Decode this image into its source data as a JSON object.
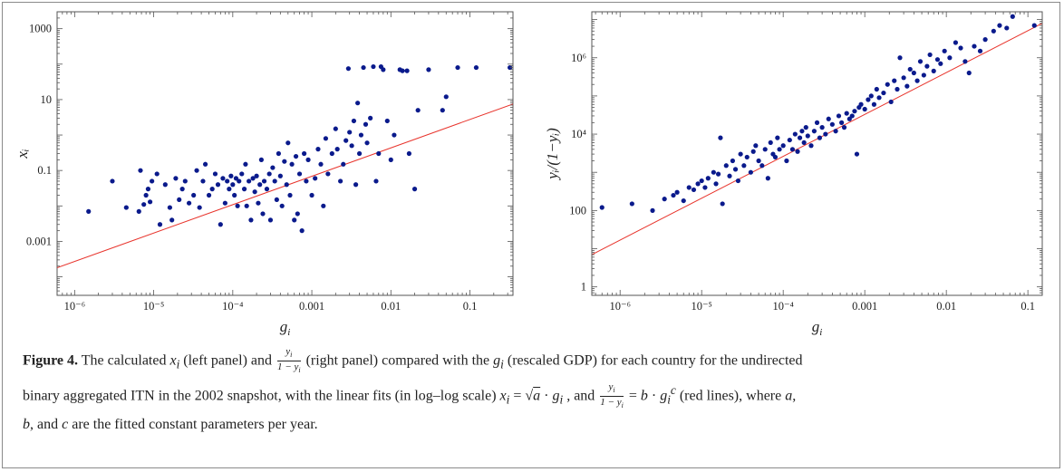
{
  "chart_data": [
    {
      "type": "scatter",
      "panel": "left",
      "xlabel": "g_i",
      "ylabel": "x_i",
      "xscale": "log",
      "yscale": "log",
      "xlim": [
        6e-07,
        0.35
      ],
      "ylim": [
        3e-05,
        3000
      ],
      "xticks": [
        1e-06,
        1e-05,
        0.0001,
        0.001,
        0.01,
        0.1
      ],
      "xtick_labels": [
        "10⁻⁶",
        "10⁻⁵",
        "10⁻⁴",
        "0.001",
        "0.01",
        "0.1"
      ],
      "yticks": [
        0.001,
        0.1,
        10,
        1000
      ],
      "ytick_labels": [
        "0.001",
        "0.1",
        "10",
        "1000"
      ],
      "grid": false,
      "point_color": "#0a1a8c",
      "fit_color": "#e8342c",
      "fit_line": {
        "x": [
          6e-07,
          0.35
        ],
        "y": [
          0.00018,
          7.5
        ]
      },
      "series": [
        {
          "points": [
            [
              1.5e-06,
              0.007
            ],
            [
              3e-06,
              0.05
            ],
            [
              4.5e-06,
              0.009
            ],
            [
              6.5e-06,
              0.007
            ],
            [
              6.8e-06,
              0.1
            ],
            [
              7.5e-06,
              0.011
            ],
            [
              8e-06,
              0.02
            ],
            [
              8.5e-06,
              0.03
            ],
            [
              9e-06,
              0.013
            ],
            [
              9.5e-06,
              0.05
            ],
            [
              1.1e-05,
              0.08
            ],
            [
              1.2e-05,
              0.003
            ],
            [
              1.4e-05,
              0.04
            ],
            [
              1.6e-05,
              0.009
            ],
            [
              1.7e-05,
              0.004
            ],
            [
              1.9e-05,
              0.06
            ],
            [
              2.1e-05,
              0.015
            ],
            [
              2.3e-05,
              0.03
            ],
            [
              2.5e-05,
              0.05
            ],
            [
              2.8e-05,
              0.012
            ],
            [
              3.2e-05,
              0.02
            ],
            [
              3.5e-05,
              0.1
            ],
            [
              3.8e-05,
              0.009
            ],
            [
              4.2e-05,
              0.05
            ],
            [
              4.5e-05,
              0.15
            ],
            [
              5e-05,
              0.02
            ],
            [
              5.5e-05,
              0.03
            ],
            [
              6e-05,
              0.08
            ],
            [
              6.5e-05,
              0.04
            ],
            [
              7e-05,
              0.003
            ],
            [
              7.5e-05,
              0.06
            ],
            [
              8e-05,
              0.012
            ],
            [
              8.5e-05,
              0.05
            ],
            [
              9e-05,
              0.03
            ],
            [
              9.5e-05,
              0.07
            ],
            [
              0.0001,
              0.04
            ],
            [
              0.000105,
              0.02
            ],
            [
              0.00011,
              0.06
            ],
            [
              0.000115,
              0.01
            ],
            [
              0.00012,
              0.05
            ],
            [
              0.00013,
              0.08
            ],
            [
              0.00014,
              0.03
            ],
            [
              0.000145,
              0.15
            ],
            [
              0.00015,
              0.01
            ],
            [
              0.00016,
              0.05
            ],
            [
              0.00017,
              0.004
            ],
            [
              0.00018,
              0.06
            ],
            [
              0.00019,
              0.025
            ],
            [
              0.0002,
              0.07
            ],
            [
              0.00021,
              0.012
            ],
            [
              0.00022,
              0.04
            ],
            [
              0.00023,
              0.2
            ],
            [
              0.00024,
              0.006
            ],
            [
              0.00025,
              0.05
            ],
            [
              0.00027,
              0.03
            ],
            [
              0.00029,
              0.08
            ],
            [
              0.0003,
              0.004
            ],
            [
              0.00032,
              0.12
            ],
            [
              0.00034,
              0.05
            ],
            [
              0.00036,
              0.015
            ],
            [
              0.00038,
              0.3
            ],
            [
              0.0004,
              0.07
            ],
            [
              0.00042,
              0.01
            ],
            [
              0.00045,
              0.18
            ],
            [
              0.00048,
              0.04
            ],
            [
              0.0005,
              0.6
            ],
            [
              0.00053,
              0.02
            ],
            [
              0.00056,
              0.15
            ],
            [
              0.0006,
              0.004
            ],
            [
              0.00063,
              0.25
            ],
            [
              0.00066,
              0.006
            ],
            [
              0.0007,
              0.08
            ],
            [
              0.00075,
              0.002
            ],
            [
              0.0008,
              0.3
            ],
            [
              0.00085,
              0.05
            ],
            [
              0.0009,
              0.2
            ],
            [
              0.001,
              0.02
            ],
            [
              0.0011,
              0.06
            ],
            [
              0.0012,
              0.4
            ],
            [
              0.0013,
              0.15
            ],
            [
              0.0014,
              0.01
            ],
            [
              0.0015,
              0.8
            ],
            [
              0.0016,
              0.08
            ],
            [
              0.0018,
              0.3
            ],
            [
              0.002,
              1.5
            ],
            [
              0.0021,
              0.4
            ],
            [
              0.0023,
              0.05
            ],
            [
              0.0025,
              0.15
            ],
            [
              0.0027,
              0.7
            ],
            [
              0.0029,
              75
            ],
            [
              0.003,
              1.2
            ],
            [
              0.0032,
              0.5
            ],
            [
              0.0034,
              2.5
            ],
            [
              0.0036,
              0.04
            ],
            [
              0.0038,
              8
            ],
            [
              0.004,
              0.3
            ],
            [
              0.0042,
              1
            ],
            [
              0.0045,
              80
            ],
            [
              0.0048,
              2
            ],
            [
              0.005,
              0.6
            ],
            [
              0.0055,
              3
            ],
            [
              0.006,
              85
            ],
            [
              0.0065,
              0.05
            ],
            [
              0.007,
              0.3
            ],
            [
              0.0075,
              85
            ],
            [
              0.008,
              70
            ],
            [
              0.009,
              2.5
            ],
            [
              0.01,
              0.2
            ],
            [
              0.011,
              1
            ],
            [
              0.013,
              70
            ],
            [
              0.014,
              65
            ],
            [
              0.016,
              65
            ],
            [
              0.017,
              0.3
            ],
            [
              0.02,
              0.03
            ],
            [
              0.022,
              5
            ],
            [
              0.03,
              70
            ],
            [
              0.045,
              5
            ],
            [
              0.05,
              12
            ],
            [
              0.07,
              80
            ],
            [
              0.12,
              80
            ],
            [
              0.32,
              80
            ]
          ]
        }
      ]
    },
    {
      "type": "scatter",
      "panel": "right",
      "xlabel": "g_i",
      "ylabel": "y_i/(1−y_i)",
      "xscale": "log",
      "yscale": "log",
      "xlim": [
        4.5e-07,
        0.15
      ],
      "ylim": [
        0.6,
        16000000.0
      ],
      "xticks": [
        1e-06,
        1e-05,
        0.0001,
        0.001,
        0.01,
        0.1
      ],
      "xtick_labels": [
        "10⁻⁶",
        "10⁻⁵",
        "10⁻⁴",
        "0.001",
        "0.01",
        "0.1"
      ],
      "yticks": [
        1,
        100,
        10000,
        1000000
      ],
      "ytick_labels": [
        "1",
        "100",
        "10⁴",
        "10⁶"
      ],
      "grid": false,
      "point_color": "#0a1a8c",
      "fit_color": "#e8342c",
      "fit_line": {
        "x": [
          4.5e-07,
          0.15
        ],
        "y": [
          7,
          8000000.0
        ]
      },
      "series": [
        {
          "points": [
            [
              6e-07,
              120
            ],
            [
              1.4e-06,
              150
            ],
            [
              2.5e-06,
              100
            ],
            [
              3.5e-06,
              200
            ],
            [
              4.5e-06,
              250
            ],
            [
              5e-06,
              300
            ],
            [
              6e-06,
              180
            ],
            [
              7e-06,
              400
            ],
            [
              8e-06,
              350
            ],
            [
              9e-06,
              500
            ],
            [
              1e-05,
              600
            ],
            [
              1.1e-05,
              400
            ],
            [
              1.2e-05,
              700
            ],
            [
              1.4e-05,
              1000
            ],
            [
              1.5e-05,
              500
            ],
            [
              1.6e-05,
              900
            ],
            [
              1.7e-05,
              8000
            ],
            [
              1.8e-05,
              150
            ],
            [
              2e-05,
              1500
            ],
            [
              2.2e-05,
              800
            ],
            [
              2.4e-05,
              2000
            ],
            [
              2.6e-05,
              1200
            ],
            [
              2.8e-05,
              600
            ],
            [
              3e-05,
              3000
            ],
            [
              3.3e-05,
              1500
            ],
            [
              3.6e-05,
              2500
            ],
            [
              4e-05,
              1000
            ],
            [
              4.3e-05,
              3500
            ],
            [
              4.6e-05,
              5000
            ],
            [
              5e-05,
              2000
            ],
            [
              5.5e-05,
              1500
            ],
            [
              6e-05,
              4000
            ],
            [
              6.5e-05,
              700
            ],
            [
              7e-05,
              6000
            ],
            [
              7.5e-05,
              3000
            ],
            [
              8e-05,
              2500
            ],
            [
              8.5e-05,
              8000
            ],
            [
              9e-05,
              4000
            ],
            [
              0.0001,
              5000
            ],
            [
              0.00011,
              2000
            ],
            [
              0.00012,
              7000
            ],
            [
              0.00013,
              4000
            ],
            [
              0.00014,
              10000
            ],
            [
              0.00015,
              3500
            ],
            [
              0.00016,
              8000
            ],
            [
              0.00017,
              12000
            ],
            [
              0.00018,
              6000
            ],
            [
              0.00019,
              15000
            ],
            [
              0.0002,
              9000
            ],
            [
              0.00022,
              5000
            ],
            [
              0.00024,
              12000
            ],
            [
              0.00026,
              20000
            ],
            [
              0.00028,
              8000
            ],
            [
              0.0003,
              15000
            ],
            [
              0.00033,
              10000
            ],
            [
              0.00036,
              25000
            ],
            [
              0.0004,
              18000
            ],
            [
              0.00044,
              12000
            ],
            [
              0.00048,
              30000
            ],
            [
              0.00052,
              20000
            ],
            [
              0.00056,
              15000
            ],
            [
              0.0006,
              35000
            ],
            [
              0.00065,
              25000
            ],
            [
              0.0007,
              30000
            ],
            [
              0.00075,
              40000
            ],
            [
              0.0008,
              3000
            ],
            [
              0.00085,
              50000
            ],
            [
              0.0009,
              60000
            ],
            [
              0.001,
              45000
            ],
            [
              0.0011,
              80000
            ],
            [
              0.0012,
              100000
            ],
            [
              0.0013,
              60000
            ],
            [
              0.0014,
              150000
            ],
            [
              0.0015,
              90000
            ],
            [
              0.0017,
              120000
            ],
            [
              0.0019,
              200000
            ],
            [
              0.0021,
              70000
            ],
            [
              0.0023,
              250000
            ],
            [
              0.0025,
              150000
            ],
            [
              0.0027,
              1000000
            ],
            [
              0.003,
              300000
            ],
            [
              0.0033,
              180000
            ],
            [
              0.0036,
              500000
            ],
            [
              0.004,
              400000
            ],
            [
              0.0044,
              250000
            ],
            [
              0.0048,
              800000
            ],
            [
              0.0053,
              350000
            ],
            [
              0.0058,
              600000
            ],
            [
              0.0063,
              1200000
            ],
            [
              0.007,
              450000
            ],
            [
              0.0078,
              900000
            ],
            [
              0.0085,
              700000
            ],
            [
              0.0095,
              1500000
            ],
            [
              0.011,
              1000000
            ],
            [
              0.013,
              2500000
            ],
            [
              0.015,
              1800000
            ],
            [
              0.017,
              800000
            ],
            [
              0.019,
              400000
            ],
            [
              0.022,
              2000000
            ],
            [
              0.026,
              1500000
            ],
            [
              0.03,
              3000000
            ],
            [
              0.038,
              5000000
            ],
            [
              0.045,
              7000000
            ],
            [
              0.055,
              6000000
            ],
            [
              0.065,
              12000000
            ],
            [
              0.12,
              7000000
            ]
          ]
        }
      ]
    }
  ],
  "caption": {
    "label": "Figure 4.",
    "line1_a": " The calculated ",
    "line1_b": " (left panel) and ",
    "line1_c": " (right panel) compared with the ",
    "line1_d": " (rescaled GDP) for each country for the undirected",
    "line2_a": "binary aggregated ITN in the 2002 snapshot, with the linear fits (in log–log scale) ",
    "line2_b": " , and ",
    "line2_c": " (red lines), where ",
    "line2_d": ",",
    "line3_a": "b",
    "line3_b": ", and ",
    "line3_c": "c",
    "line3_d": " are the fitted constant parameters per year.",
    "math_x": "x",
    "math_g": "g",
    "math_y": "y",
    "math_a": "a",
    "math_b": "b",
    "math_c": "c",
    "sub_i": "i",
    "frac_num": "y",
    "frac_den": "1 − y",
    "eq1_mid": " = √",
    "eq1_dot": " · ",
    "eq2_mid": " = ",
    "eq2_dot": " · "
  }
}
